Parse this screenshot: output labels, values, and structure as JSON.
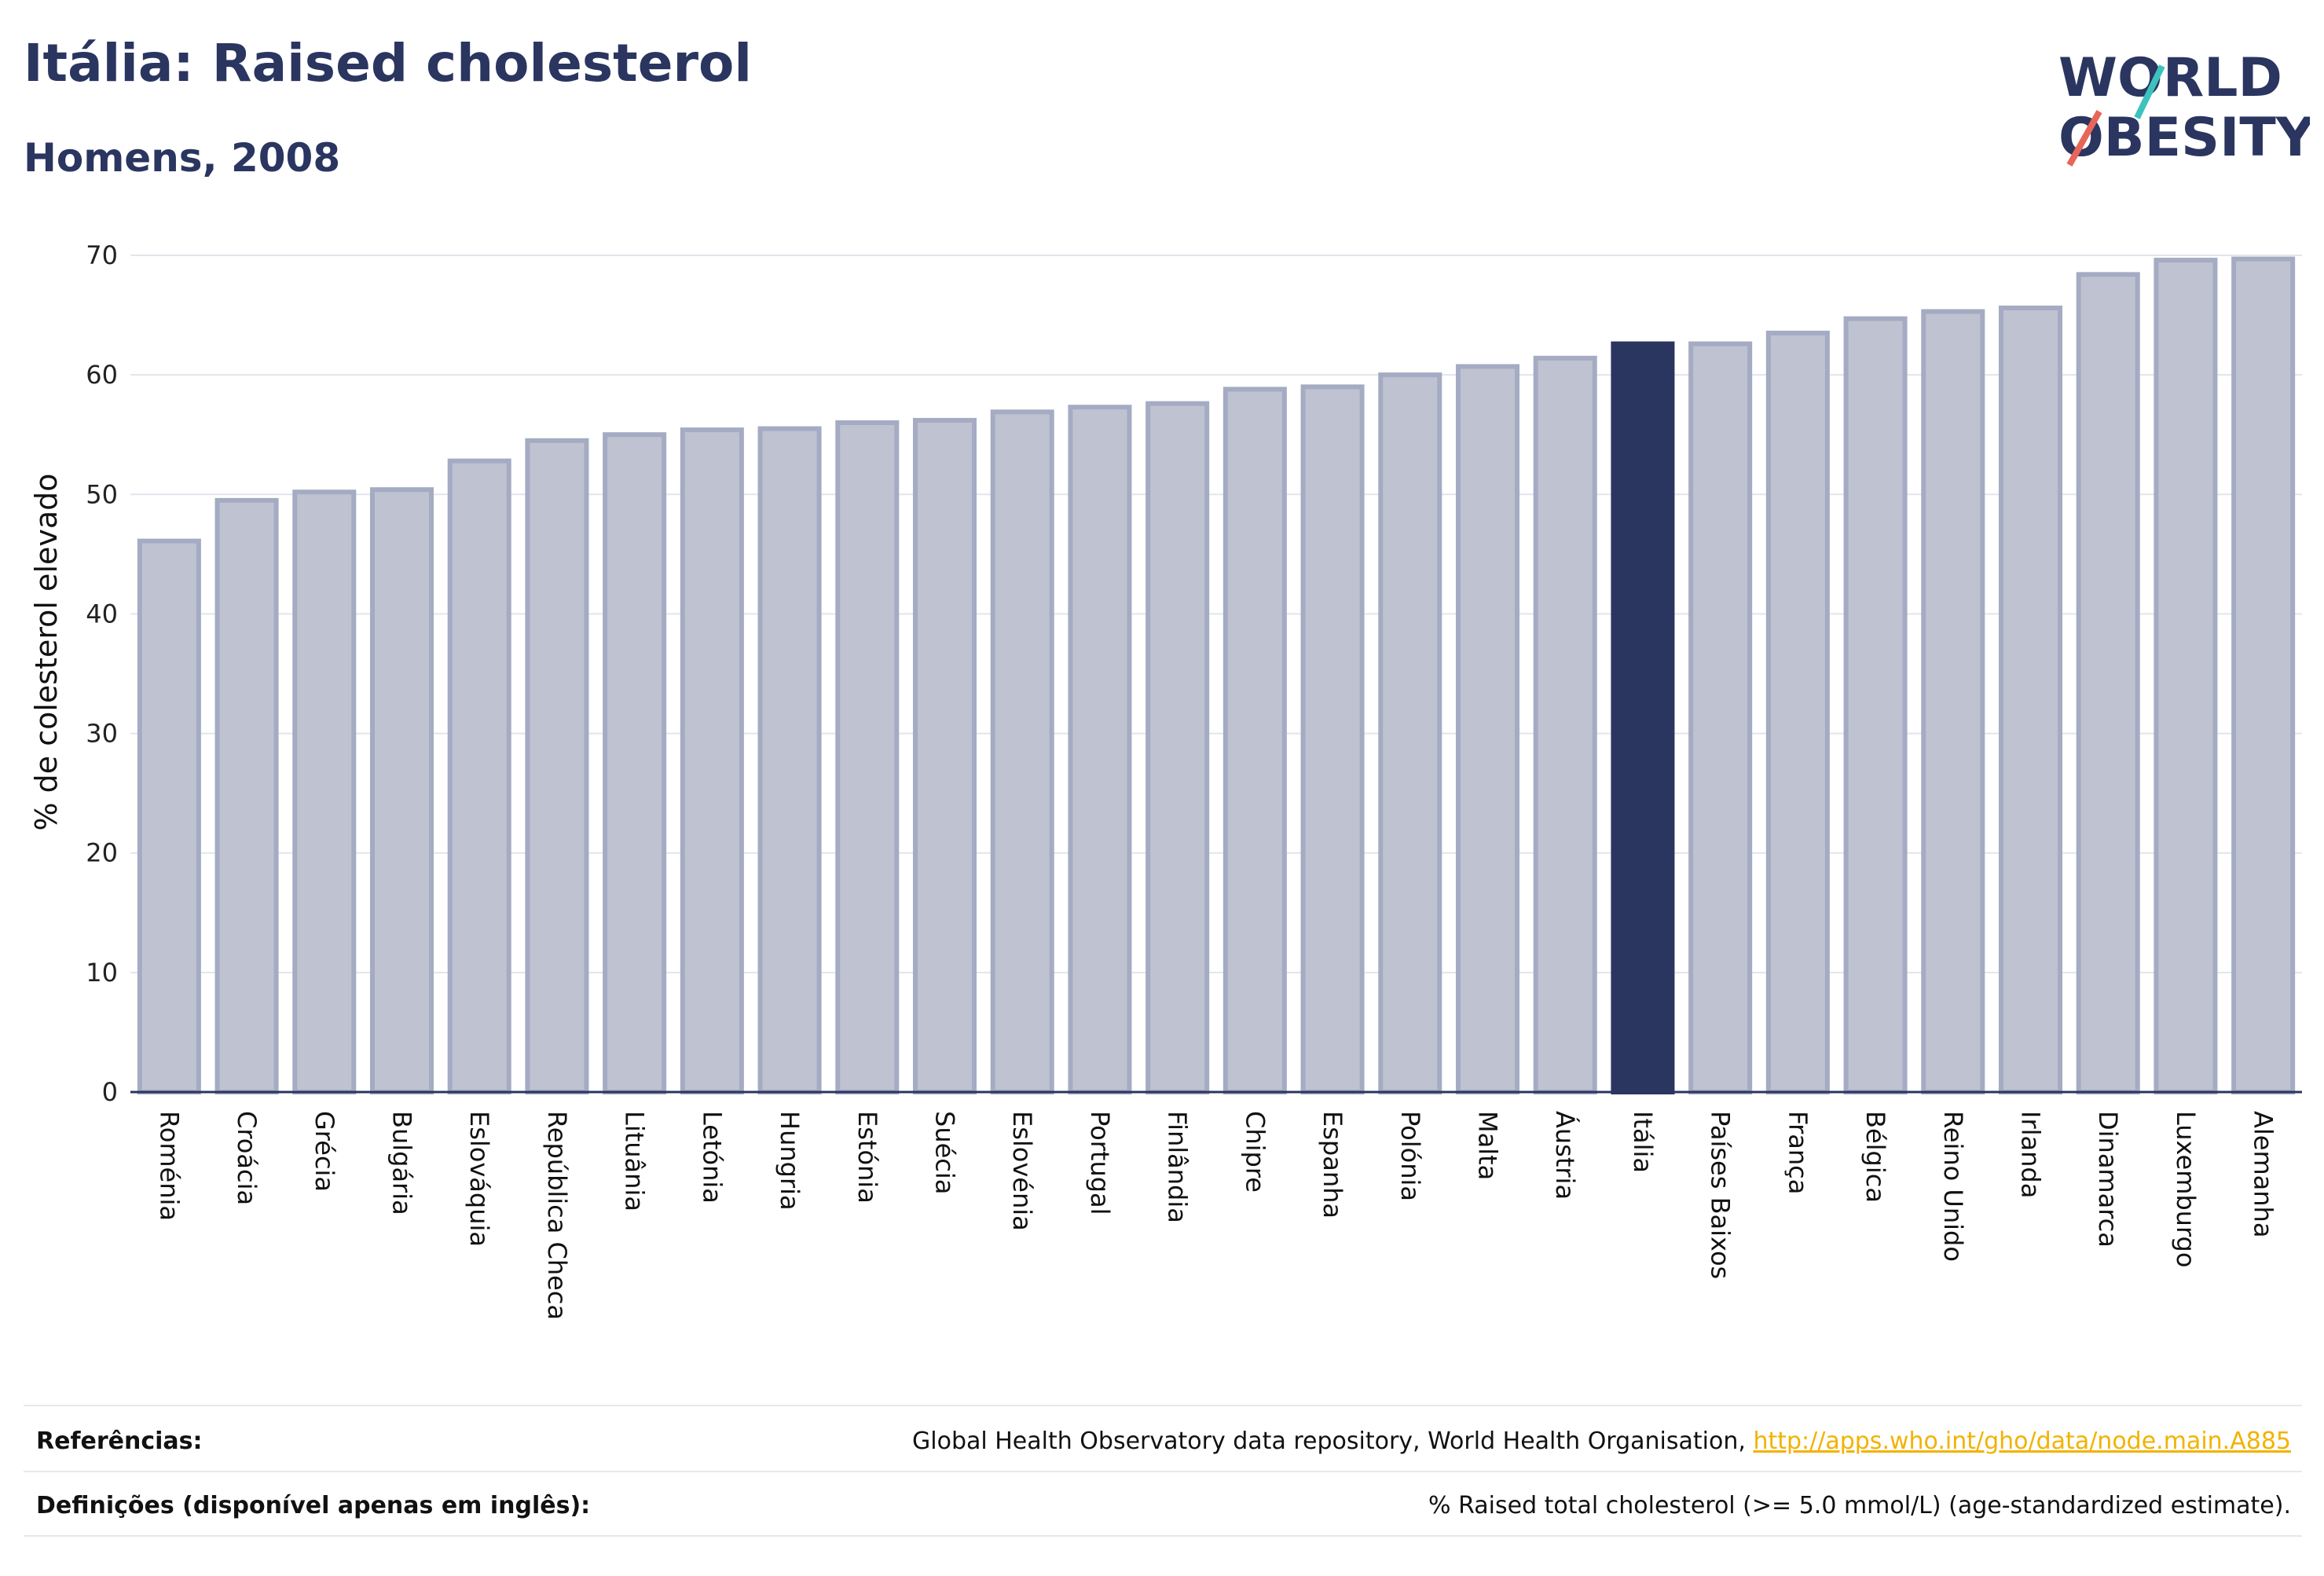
{
  "header": {
    "title": "Itália: Raised cholesterol",
    "subtitle": "Homens, 2008",
    "logo_line1": "WORLD",
    "logo_line2": "OBESITY"
  },
  "colors": {
    "bar": "#bfc3d1",
    "bar_stroke": "#a4abc2",
    "highlight": "#2a3560",
    "grid": "#e3e5ec",
    "logo_teal": "#3cc3bd",
    "logo_red": "#e8655a"
  },
  "chart_data": {
    "type": "bar",
    "ylabel": "% de colesterol elevado",
    "xlabel": "",
    "ylim": [
      0,
      70
    ],
    "yticks": [
      0,
      10,
      20,
      30,
      40,
      50,
      60,
      70
    ],
    "grid": true,
    "highlight": "Itália",
    "categories": [
      "Roménia",
      "Croácia",
      "Grécia",
      "Bulgária",
      "Eslováquia",
      "República Checa",
      "Lituânia",
      "Letónia",
      "Hungria",
      "Estónia",
      "Suécia",
      "Eslovénia",
      "Portugal",
      "Finlândia",
      "Chipre",
      "Espanha",
      "Polónia",
      "Malta",
      "Áustria",
      "Itália",
      "Países Baixos",
      "França",
      "Bélgica",
      "Reino Unido",
      "Irlanda",
      "Dinamarca",
      "Luxemburgo",
      "Alemanha"
    ],
    "values": [
      46.1,
      49.5,
      50.2,
      50.4,
      52.8,
      54.5,
      55.0,
      55.4,
      55.5,
      56.0,
      56.2,
      56.9,
      57.3,
      57.6,
      58.8,
      59.0,
      60.0,
      60.7,
      61.4,
      62.6,
      62.6,
      63.5,
      64.7,
      65.3,
      65.6,
      68.4,
      69.6,
      69.7
    ]
  },
  "footer": {
    "references_label": "Referências:",
    "references_text": "Global Health Observatory data repository, World Health Organisation, ",
    "references_link": "http://apps.who.int/gho/data/node.main.A885",
    "definitions_label": "Definições (disponível apenas em inglês):",
    "definitions_text": "% Raised total cholesterol (>= 5.0 mmol/L) (age-standardized estimate)."
  }
}
